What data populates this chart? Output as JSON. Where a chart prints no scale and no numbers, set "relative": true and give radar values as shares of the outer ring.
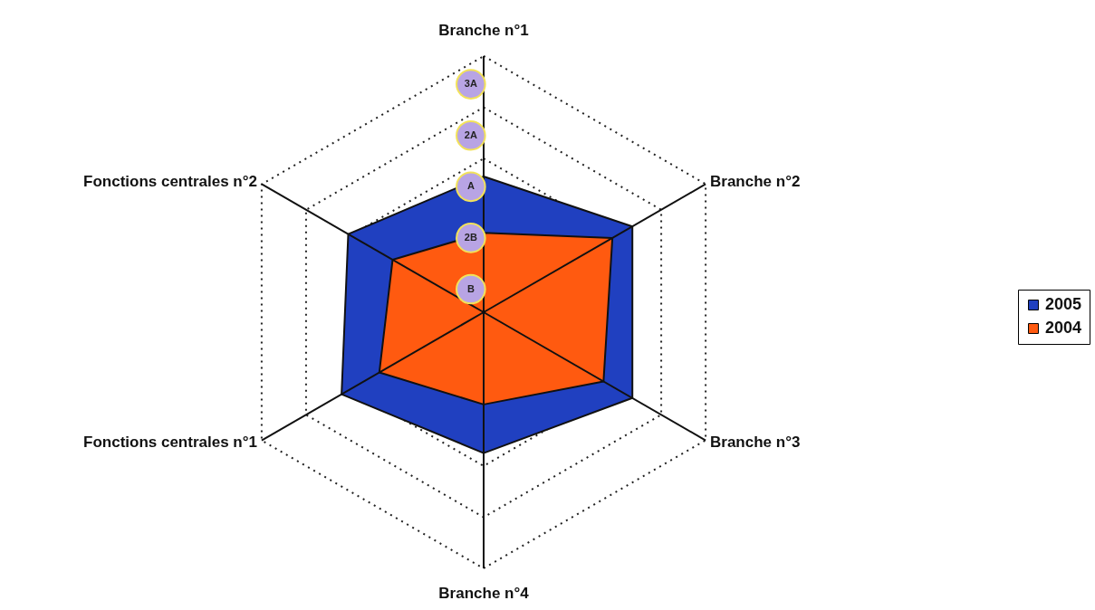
{
  "chart_data": {
    "type": "radar",
    "categories": [
      "Branche n°1",
      "Branche n°2",
      "Branche n°3",
      "Branche n°4",
      "Fonctions centrales n°1",
      "Fonctions centrales n°2"
    ],
    "series": [
      {
        "name": "2005",
        "color": "#2040c0",
        "values": [
          0.53,
          0.67,
          0.67,
          0.55,
          0.64,
          0.61
        ]
      },
      {
        "name": "2004",
        "color": "#ff5a10",
        "values": [
          0.31,
          0.58,
          0.54,
          0.36,
          0.47,
          0.41
        ]
      }
    ],
    "relative": true,
    "annotations": [
      "B",
      "2B",
      "A",
      "2A",
      "3A"
    ],
    "grid": true,
    "legend": "right"
  }
}
